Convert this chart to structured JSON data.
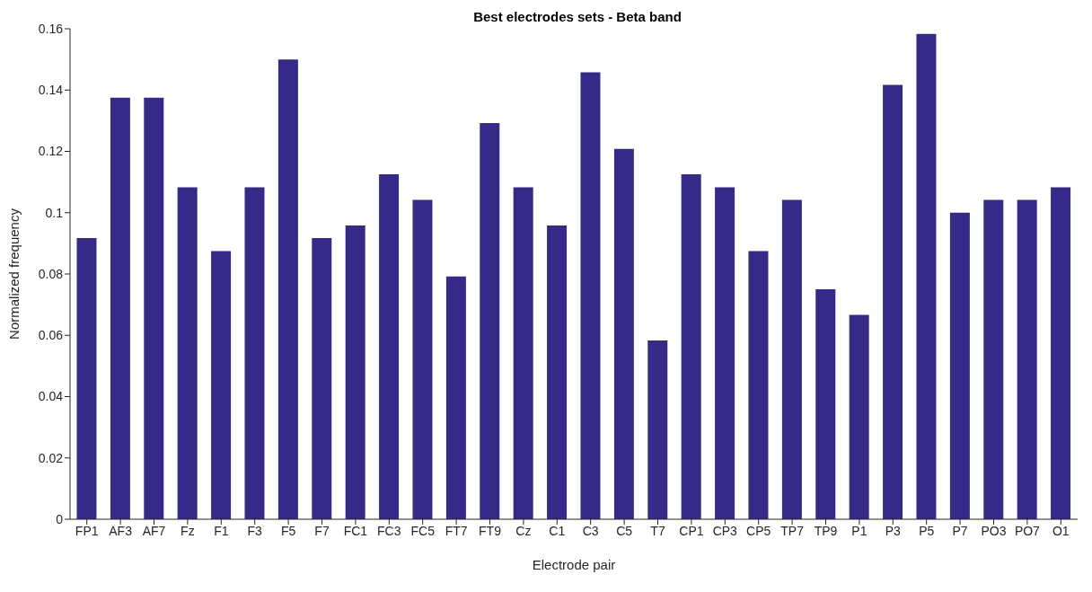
{
  "chart_data": {
    "type": "bar",
    "title": "Best electrodes sets - Beta band",
    "xlabel": "Electrode pair",
    "ylabel": "Normalized frequency",
    "categories": [
      "FP1",
      "AF3",
      "AF7",
      "Fz",
      "F1",
      "F3",
      "F5",
      "F7",
      "FC1",
      "FC3",
      "FC5",
      "FT7",
      "FT9",
      "Cz",
      "C1",
      "C3",
      "C5",
      "T7",
      "CP1",
      "CP3",
      "CP5",
      "TP7",
      "TP9",
      "P1",
      "P3",
      "P5",
      "P7",
      "PO3",
      "PO7",
      "O1"
    ],
    "values": [
      0.0917,
      0.1375,
      0.1375,
      0.1083,
      0.0875,
      0.1083,
      0.15,
      0.0917,
      0.0958,
      0.1125,
      0.1042,
      0.0792,
      0.1292,
      0.1083,
      0.0958,
      0.1458,
      0.1208,
      0.0583,
      0.1125,
      0.1083,
      0.0875,
      0.1042,
      0.075,
      0.0667,
      0.1417,
      0.1583,
      0.1,
      0.1042,
      0.1042,
      0.1083
    ],
    "color": "#352a87",
    "ylim": [
      0,
      0.16
    ],
    "yticks": [
      0,
      0.02,
      0.04,
      0.06,
      0.08,
      0.1,
      0.12,
      0.14,
      0.16
    ],
    "grid": false,
    "legend": false
  }
}
